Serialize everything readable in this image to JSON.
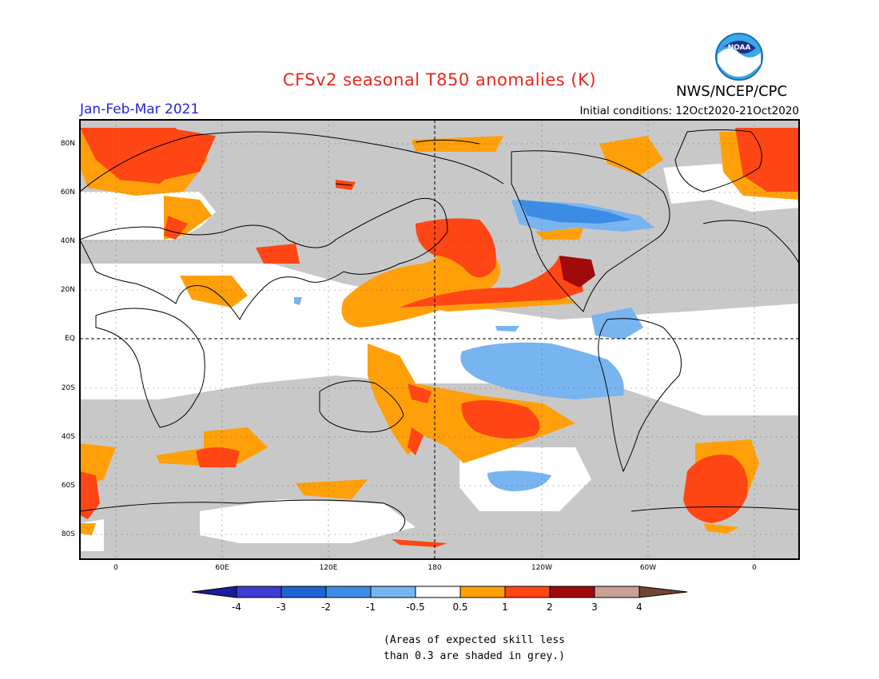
{
  "title": "CFSv2 seasonal T850 anomalies (K)",
  "agency": "NWS/NCEP/CPC",
  "logo_text": "NOAA",
  "season": "Jan-Feb-Mar 2021",
  "initial_conditions": "Initial conditions: 12Oct2020-21Oct2020",
  "lat_labels": [
    "80N",
    "60N",
    "40N",
    "20N",
    "EQ",
    "20S",
    "40S",
    "60S",
    "80S"
  ],
  "lon_labels": [
    "0",
    "60E",
    "120E",
    "180",
    "120W",
    "60W",
    "0"
  ],
  "colorbar": {
    "labels": [
      "-4",
      "-3",
      "-2",
      "-1",
      "-0.5",
      "0.5",
      "1",
      "2",
      "3",
      "4"
    ],
    "colors": [
      "#1c1c9c",
      "#3c3cd0",
      "#1e64d2",
      "#3c8ce6",
      "#78b4f0",
      "#ffffff",
      "#ffa00a",
      "#ff4614",
      "#a00a0a",
      "#c8a096",
      "#6e4632"
    ]
  },
  "note": "(Areas of expected skill less\nthan 0.3 are shaded in grey.)",
  "colors": {
    "title": "#e8261c",
    "season": "#2424e0",
    "low_skill_grey": "#c8c8c8"
  }
}
